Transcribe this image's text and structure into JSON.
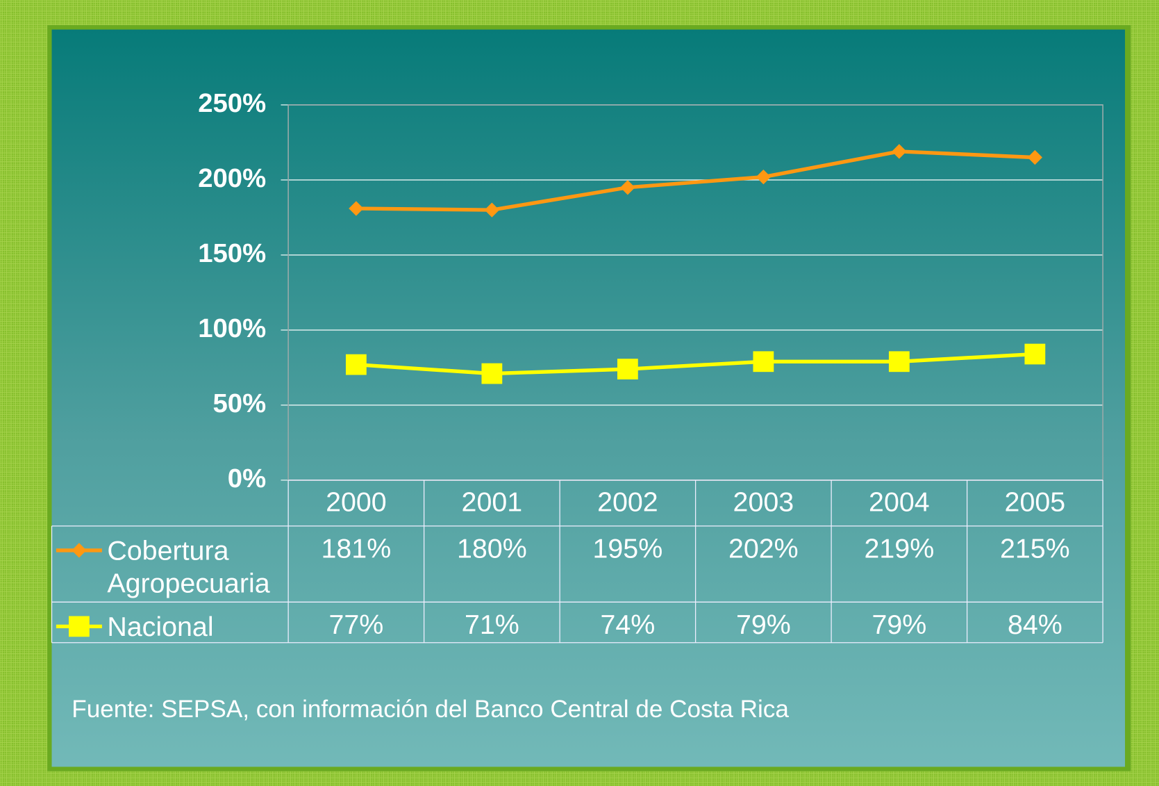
{
  "chart_data": {
    "type": "line",
    "categories": [
      "2000",
      "2001",
      "2002",
      "2003",
      "2004",
      "2005"
    ],
    "series": [
      {
        "name": "Cobertura Agropecuaria",
        "color": "#ff9812",
        "marker": "diamond",
        "values": [
          181,
          180,
          195,
          202,
          219,
          215
        ],
        "value_labels": [
          "181%",
          "180%",
          "195%",
          "202%",
          "219%",
          "215%"
        ]
      },
      {
        "name": "Nacional",
        "color": "#ffff00",
        "marker": "square",
        "values": [
          77,
          71,
          74,
          79,
          79,
          84
        ],
        "value_labels": [
          "77%",
          "71%",
          "74%",
          "79%",
          "79%",
          "84%"
        ]
      }
    ],
    "ylim": [
      0,
      250
    ],
    "yticks": [
      {
        "value": 0,
        "label": "0%"
      },
      {
        "value": 50,
        "label": "50%"
      },
      {
        "value": 100,
        "label": "100%"
      },
      {
        "value": 150,
        "label": "150%"
      },
      {
        "value": 200,
        "label": "200%"
      },
      {
        "value": 250,
        "label": "250%"
      }
    ],
    "grid": true,
    "source": "Fuente:  SEPSA, con información del Banco Central de Costa Rica"
  }
}
